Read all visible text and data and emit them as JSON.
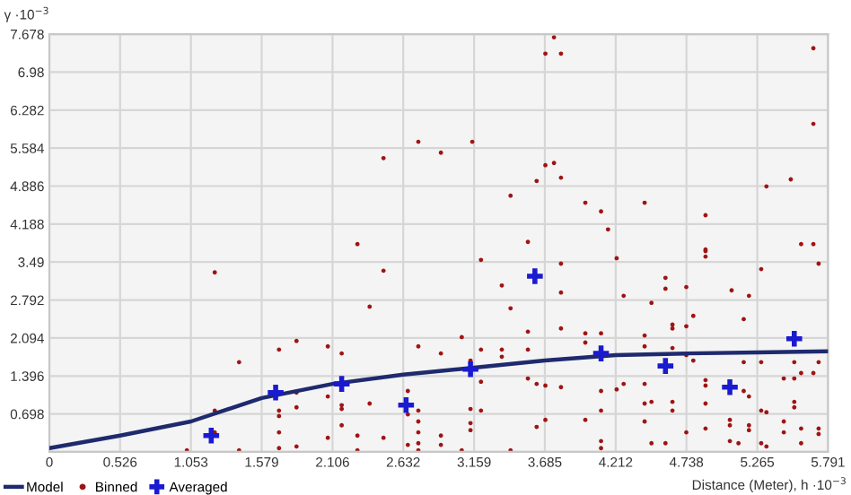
{
  "chart_data": {
    "type": "scatter",
    "ylabel": "γ ·10$^{−3}$",
    "xlabel": "Distance (Meter), h ·10$^{−3}$",
    "xlim": [
      0,
      5.791
    ],
    "ylim": [
      0,
      7.678
    ],
    "xticks": [
      0,
      0.526,
      1.053,
      1.579,
      2.106,
      2.632,
      3.159,
      3.685,
      4.212,
      4.738,
      5.265,
      5.791
    ],
    "yticks": [
      {
        "value": 0,
        "label": null
      },
      0.698,
      1.396,
      2.094,
      2.792,
      3.49,
      4.188,
      4.886,
      5.584,
      6.282,
      6.98,
      7.678
    ],
    "grid": true,
    "legend": "bottom left",
    "series": [
      {
        "name": "Model",
        "type": "line",
        "marker": "none",
        "color": "#1f2a6e",
        "x": [
          0,
          0.526,
          1.053,
          1.579,
          2.106,
          2.632,
          3.159,
          3.685,
          4.212,
          4.738,
          5.265,
          5.791
        ],
        "values": [
          0.07,
          0.3,
          0.56,
          0.99,
          1.25,
          1.42,
          1.55,
          1.68,
          1.78,
          1.81,
          1.83,
          1.85
        ]
      },
      {
        "name": "Binned",
        "marker": "circle",
        "color": "#a01414",
        "x": [
          2.485,
          2.744,
          2.291,
          3.753,
          3.689,
          3.805,
          5.682,
          5.682,
          3.145,
          2.912,
          3.689,
          3.753,
          3.624,
          3.805,
          3.43,
          3.986,
          4.103,
          4.427,
          4.88,
          5.333,
          5.514,
          4.155,
          5.591,
          5.682,
          4.88,
          2.485,
          1.23,
          2.382,
          1.411,
          1.708,
          1.838,
          2.071,
          2.174,
          2.744,
          1.23,
          2.666,
          1.838,
          2.071,
          1.708,
          1.708,
          1.838,
          2.174,
          2.174,
          2.382,
          2.666,
          2.744,
          2.744,
          2.174,
          1.708,
          2.744,
          1.23,
          2.071,
          2.485,
          2.291,
          2.744,
          2.744,
          1.708,
          1.838,
          2.291,
          1.023,
          1.411,
          2.666,
          3.21,
          3.805,
          4.219,
          4.88,
          4.88,
          5.721,
          3.365,
          4.582,
          4.582,
          4.737,
          5.074,
          5.203,
          5.294,
          4.271,
          3.805,
          3.43,
          4.478,
          5.164,
          4.634,
          4.634,
          4.737,
          4.789,
          3.067,
          3.559,
          3.805,
          3.986,
          4.103,
          3.986,
          4.427,
          4.427,
          2.912,
          3.21,
          3.365,
          3.365,
          3.559,
          4.634,
          4.737,
          4.789,
          5.164,
          5.294,
          5.54,
          5.721,
          3.132,
          3.21,
          3.559,
          3.624,
          3.689,
          3.805,
          4.271,
          4.427,
          4.88,
          4.88,
          5.462,
          5.54,
          5.591,
          5.682,
          5.164,
          5.203,
          5.54,
          5.54,
          4.103,
          4.219,
          4.427,
          4.478,
          4.634,
          4.634,
          4.88,
          3.132,
          3.21,
          3.624,
          3.689,
          3.986,
          4.103,
          4.427,
          4.737,
          4.88,
          5.061,
          5.061,
          5.203,
          5.203,
          5.294,
          5.333,
          5.462,
          5.462,
          5.591,
          5.721,
          3.132,
          3.132,
          2.912,
          2.912,
          3.067,
          3.43,
          4.103,
          4.103,
          4.582,
          4.478,
          5.061,
          5.125,
          5.294,
          5.333,
          5.591,
          5.721,
          3.559
        ],
        "values": [
          5.4,
          5.7,
          3.82,
          7.62,
          7.32,
          7.32,
          7.42,
          6.03,
          5.7,
          5.5,
          5.27,
          5.31,
          4.98,
          5.04,
          4.71,
          4.58,
          4.42,
          4.58,
          4.35,
          4.88,
          5.01,
          4.09,
          3.82,
          3.82,
          3.72,
          3.33,
          3.3,
          2.67,
          1.65,
          1.88,
          2.04,
          1.94,
          1.81,
          1.94,
          0.76,
          1.12,
          1.09,
          1.02,
          0.76,
          0.66,
          0.82,
          0.86,
          0.79,
          0.89,
          0.69,
          0.76,
          0.56,
          0.49,
          0.36,
          0.36,
          0.36,
          0.26,
          0.26,
          0.3,
          0.16,
          0.03,
          0.07,
          0.1,
          0.03,
          0.03,
          0.03,
          0.13,
          3.53,
          3.46,
          3.56,
          3.69,
          3.59,
          3.46,
          3.06,
          3.2,
          3.0,
          3.03,
          2.97,
          2.87,
          3.36,
          2.87,
          2.93,
          2.64,
          2.74,
          2.44,
          2.34,
          2.27,
          2.31,
          2.5,
          2.11,
          2.21,
          2.27,
          2.18,
          2.18,
          2.01,
          2.14,
          1.94,
          1.81,
          1.88,
          1.88,
          1.75,
          1.88,
          1.91,
          1.78,
          1.68,
          1.65,
          1.65,
          1.65,
          1.65,
          1.68,
          1.29,
          1.35,
          1.25,
          1.22,
          1.19,
          1.25,
          1.25,
          1.32,
          1.22,
          1.35,
          1.35,
          1.45,
          1.45,
          1.12,
          1.02,
          0.92,
          0.82,
          1.12,
          1.15,
          0.89,
          0.92,
          0.92,
          0.76,
          0.89,
          0.79,
          0.76,
          0.46,
          0.59,
          0.59,
          0.76,
          0.56,
          0.36,
          0.43,
          0.59,
          0.49,
          0.49,
          0.4,
          0.76,
          0.73,
          0.56,
          0.36,
          0.43,
          0.43,
          0.53,
          0.4,
          0.3,
          0.13,
          0.03,
          0.03,
          0.2,
          0.07,
          0.16,
          0.16,
          0.2,
          0.16,
          0.16,
          0.1,
          0.16,
          0.33,
          3.86
        ]
      },
      {
        "name": "Averaged",
        "marker": "cross",
        "color": "#1a1ad0",
        "x": [
          1.204,
          1.683,
          2.174,
          2.653,
          3.132,
          3.611,
          4.103,
          4.582,
          5.061,
          5.54
        ],
        "values": [
          0.3,
          1.09,
          1.25,
          0.86,
          1.52,
          3.23,
          1.81,
          1.58,
          1.19,
          2.08
        ]
      }
    ]
  }
}
